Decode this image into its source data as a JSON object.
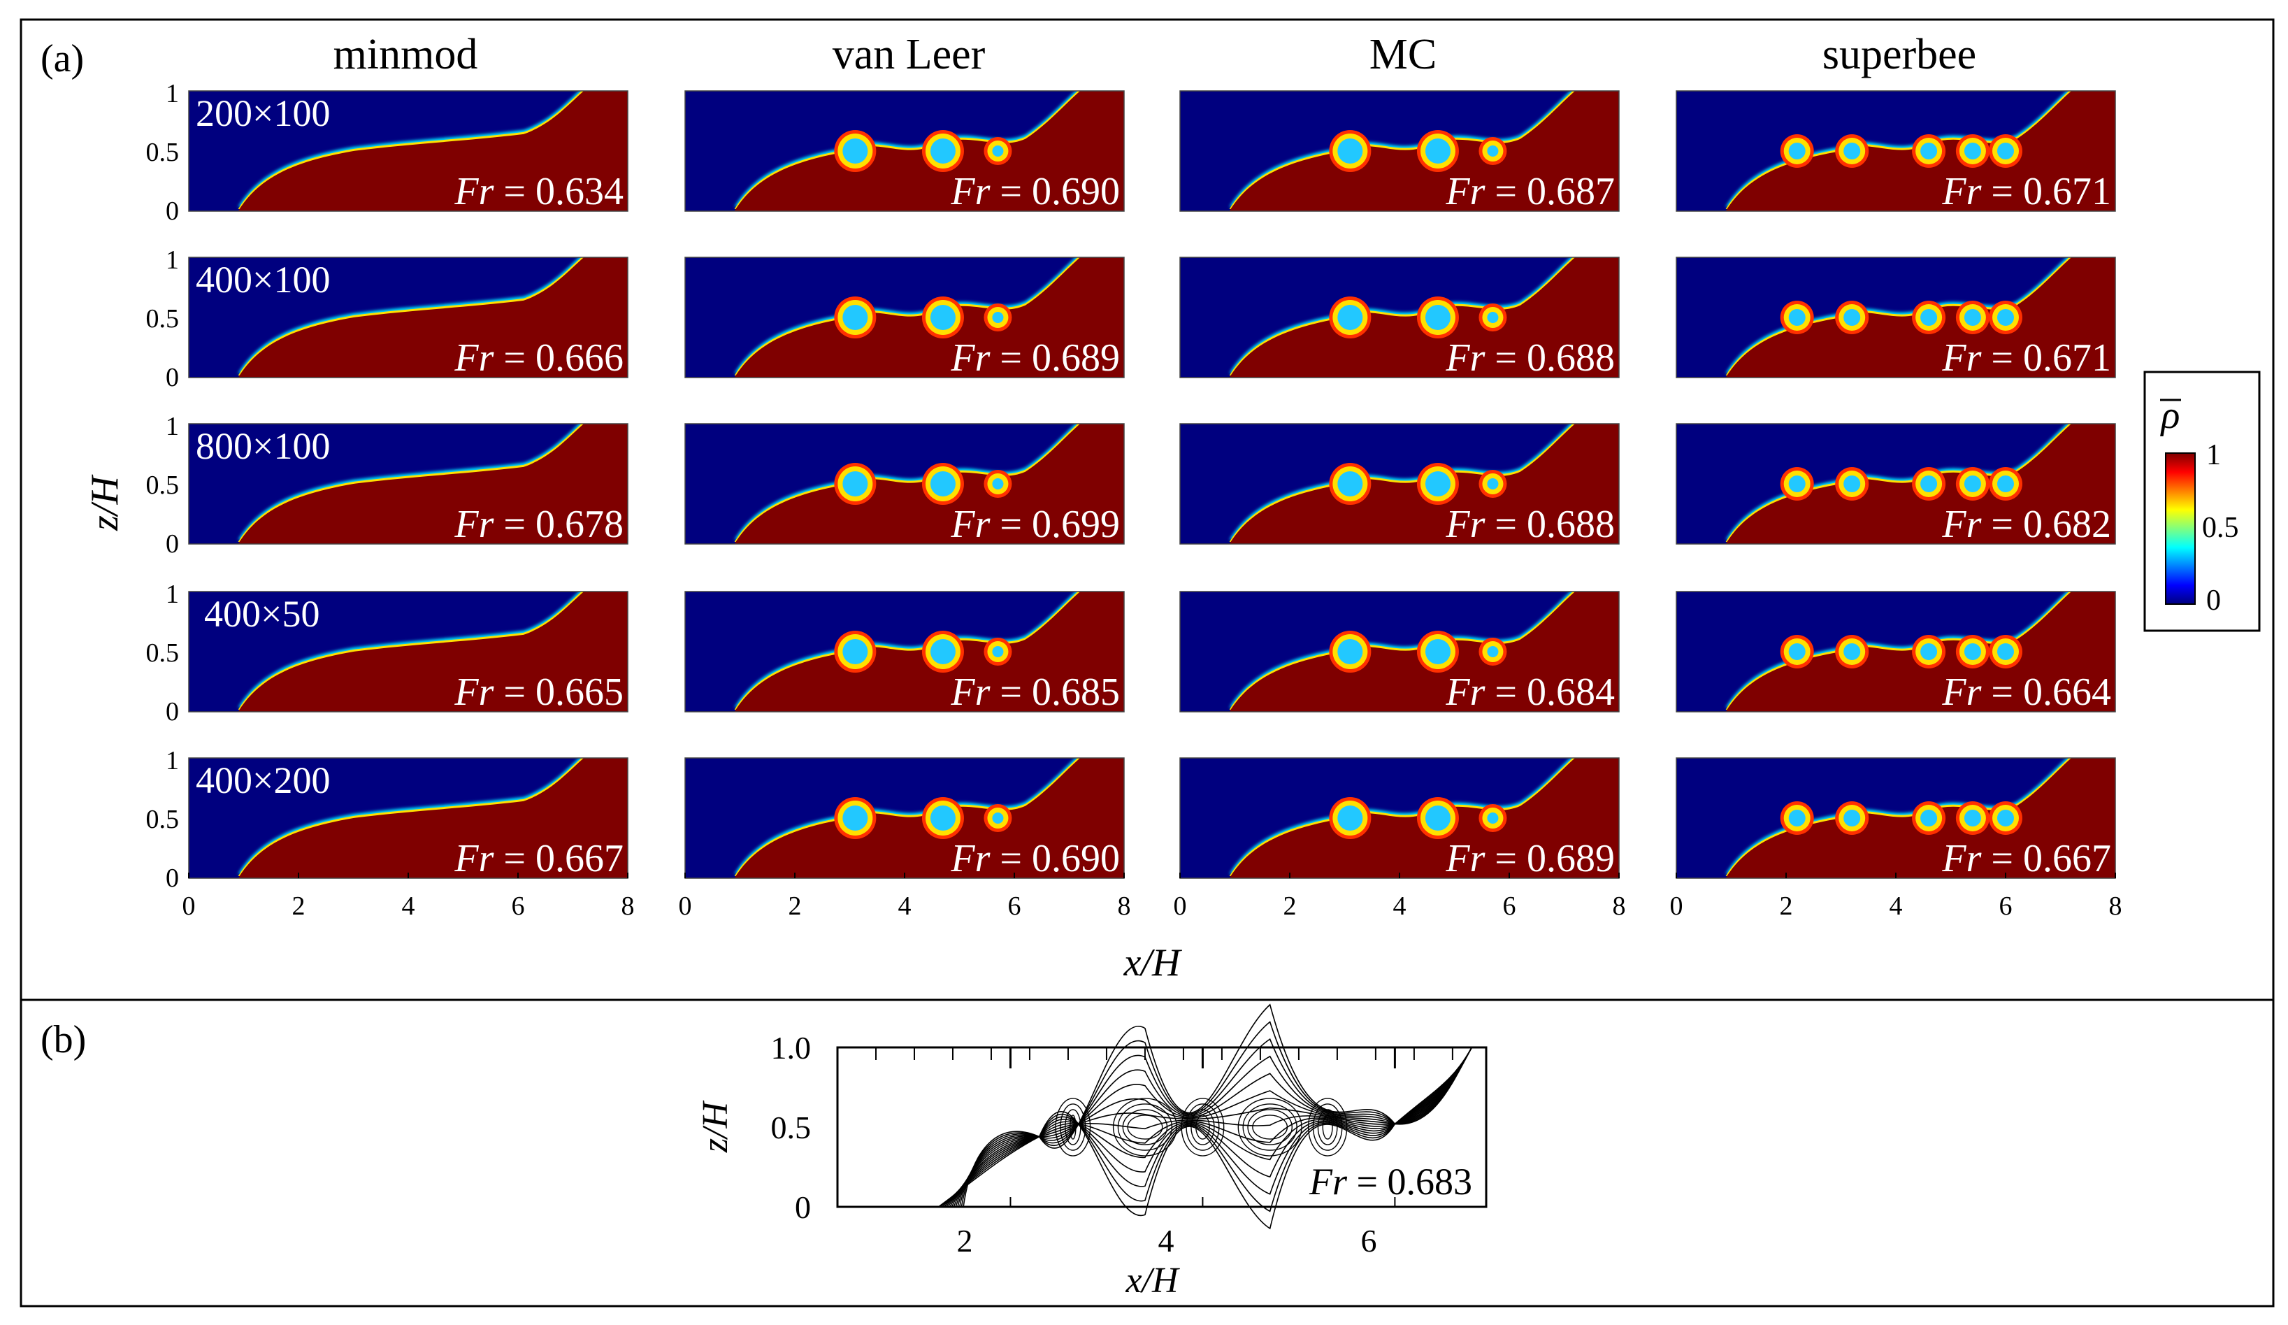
{
  "figure": {
    "panel_a": {
      "label": "(a)",
      "columns": [
        "minmod",
        "van Leer",
        "MC",
        "superbee"
      ],
      "rows": [
        {
          "grid": "200×100",
          "fr": [
            "0.634",
            "0.690",
            "0.687",
            "0.671"
          ]
        },
        {
          "grid": "400×100",
          "fr": [
            "0.666",
            "0.689",
            "0.688",
            "0.671"
          ]
        },
        {
          "grid": "800×100",
          "fr": [
            "0.678",
            "0.699",
            "0.688",
            "0.682"
          ]
        },
        {
          "grid": "400×50",
          "fr": [
            "0.665",
            "0.685",
            "0.684",
            "0.664"
          ]
        },
        {
          "grid": "400×200",
          "fr": [
            "0.667",
            "0.690",
            "0.689",
            "0.667"
          ]
        }
      ],
      "fr_prefix": "Fr",
      "fr_eq": " = ",
      "y_ticks": [
        "1",
        "0.5",
        "0"
      ],
      "x_ticks": [
        "0",
        "2",
        "4",
        "6",
        "8"
      ],
      "xlabel": "x/H",
      "ylabel": "z/H",
      "colorbar": {
        "symbol": "ρ",
        "ticks": [
          "1",
          "0.5",
          "0"
        ]
      }
    },
    "panel_b": {
      "label": "(b)",
      "fr": "0.683",
      "y_ticks": [
        "1.0",
        "0.5",
        "0"
      ],
      "x_ticks": [
        "2",
        "4",
        "6"
      ],
      "xlabel": "x/H",
      "ylabel": "z/H"
    },
    "colors": {
      "background_fluid": "#00007f",
      "dense_fluid": "#7f0000",
      "frame": "#000000"
    }
  }
}
